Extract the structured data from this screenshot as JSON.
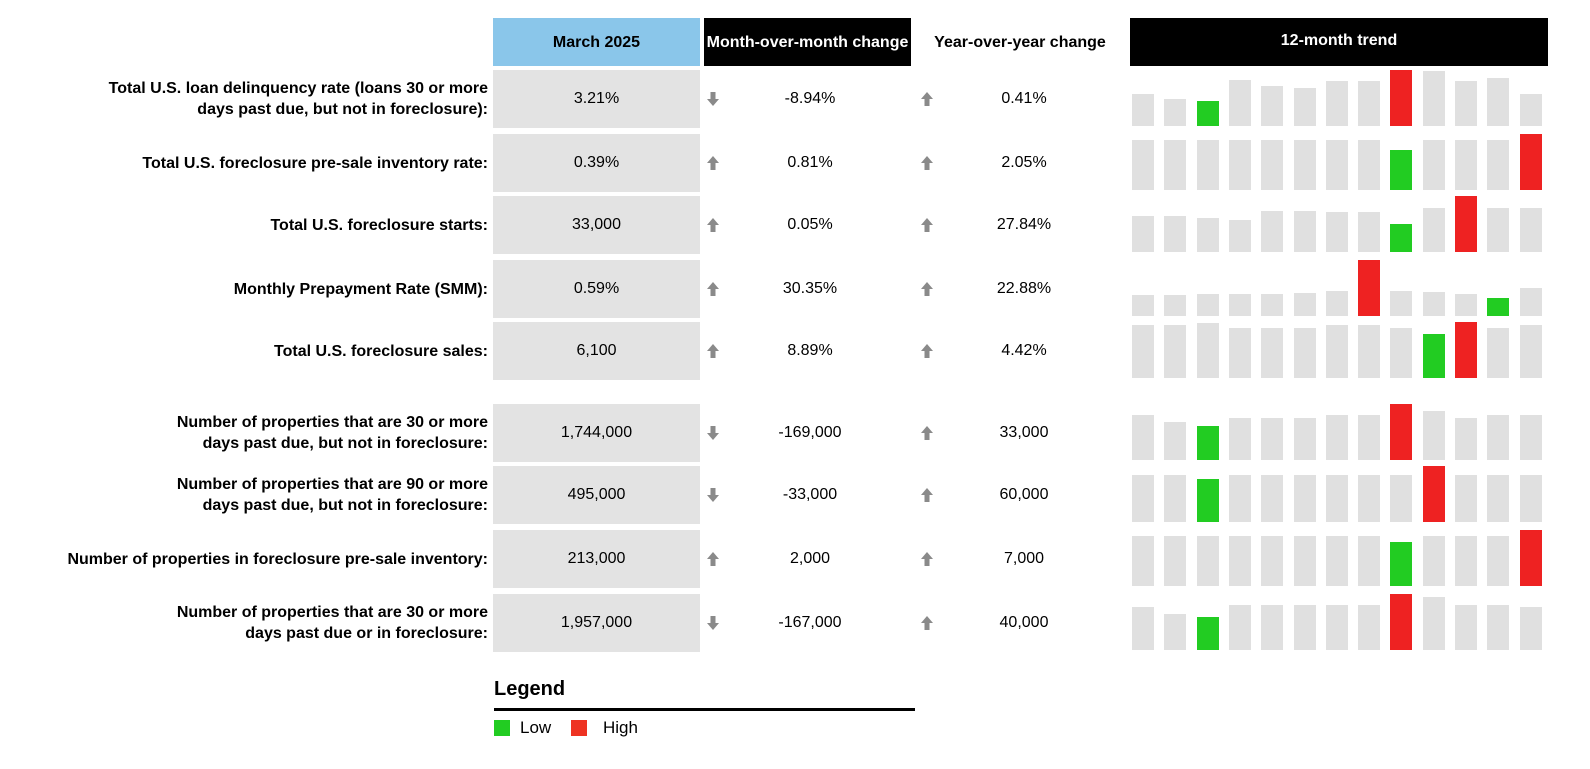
{
  "header": {
    "current": "March 2025",
    "mom": "Month-over-month change",
    "yoy": "Year-over-year change",
    "trend": "12-month trend"
  },
  "rows": [
    {
      "label": [
        "Total U.S. loan delinquency rate (loans 30 or more",
        "days past due, but not in foreclosure):"
      ],
      "current": "3.21%",
      "mom": "-8.94%",
      "yoy": "0.41%",
      "trend": [
        3.21,
        2.71,
        2.51,
        4.61,
        4.01,
        3.81,
        4.51,
        4.51,
        5.62,
        5.52,
        4.51,
        4.81,
        3.21
      ]
    },
    {
      "label": [
        "Total U.S. foreclosure pre-sale inventory rate:"
      ],
      "current": "0.39%",
      "mom": "0.81%",
      "yoy": "2.05%",
      "trend": [
        0.35,
        0.35,
        0.35,
        0.35,
        0.35,
        0.35,
        0.35,
        0.35,
        0.28,
        0.35,
        0.35,
        0.35,
        0.39
      ]
    },
    {
      "label": [
        "Total U.S. foreclosure starts:"
      ],
      "current": "33,000",
      "mom": "0.05%",
      "yoy": "27.84%",
      "trend": [
        27500,
        27500,
        25700,
        23800,
        31200,
        31200,
        30300,
        30300,
        21100,
        33000,
        42200,
        33000,
        33000
      ]
    },
    {
      "label": [
        "Monthly Prepayment Rate (SMM):"
      ],
      "current": "0.59%",
      "mom": "30.35%",
      "yoy": "22.88%",
      "trend": [
        0.45,
        0.45,
        0.46,
        0.46,
        0.47,
        0.48,
        0.52,
        1.18,
        0.52,
        0.5,
        0.46,
        0.37,
        0.59
      ]
    },
    {
      "label": [
        "Total U.S. foreclosure sales:"
      ],
      "current": "6,100",
      "mom": "8.89%",
      "yoy": "4.42%",
      "trend": [
        6100,
        6100,
        6270,
        5760,
        5760,
        5760,
        6100,
        6100,
        5760,
        5080,
        6440,
        5760,
        6100
      ]
    },
    {
      "label": [
        "Number of properties that are 30 or more",
        "days past due, but not in foreclosure:"
      ],
      "current": "1,744,000",
      "mom": "-169,000",
      "yoy": "33,000",
      "trend": [
        1744000,
        1472000,
        1308000,
        1635000,
        1635000,
        1635000,
        1744000,
        1744000,
        2180000,
        1907000,
        1635000,
        1744000,
        1744000
      ]
    },
    {
      "label": [
        "Number of properties that are 90 or more",
        "days past due, but not in foreclosure:"
      ],
      "current": "495,000",
      "mom": "-33,000",
      "yoy": "60,000",
      "trend": [
        495000,
        495000,
        450000,
        495000,
        495000,
        495000,
        495000,
        495000,
        495000,
        585000,
        495000,
        495000,
        495000
      ]
    },
    {
      "label": [
        "Number of properties in foreclosure pre-sale inventory:"
      ],
      "current": "213,000",
      "mom": "2,000",
      "yoy": "7,000",
      "trend": [
        189000,
        189000,
        189000,
        189000,
        189000,
        189000,
        189000,
        189000,
        166000,
        189000,
        189000,
        189000,
        213000
      ]
    },
    {
      "label": [
        "Number of properties that are 30 or more",
        "days past due or in foreclosure:"
      ],
      "current": "1,957,000",
      "mom": "-167,000",
      "yoy": "40,000",
      "trend": [
        1957000,
        1651000,
        1529000,
        2079000,
        2079000,
        2079000,
        2079000,
        2079000,
        2569000,
        2446000,
        2079000,
        2079000,
        1957000
      ]
    }
  ],
  "legend": {
    "title": "Legend",
    "low": "Low",
    "high": "High"
  }
}
